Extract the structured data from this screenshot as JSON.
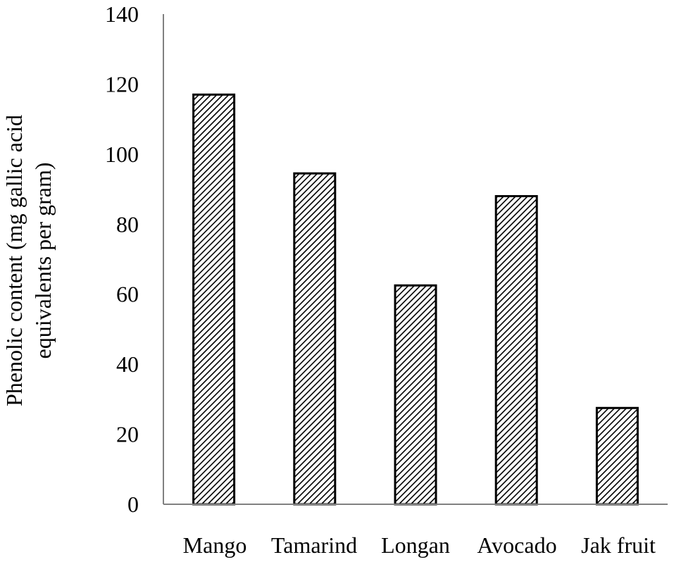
{
  "chart_data": {
    "type": "bar",
    "title": "",
    "xlabel": "",
    "ylabel_lines": [
      "Phenolic content (mg gallic acid",
      "equivalents per gram)"
    ],
    "categories": [
      "Mango",
      "Tamarind",
      "Longan",
      "Avocado",
      "Jak fruit"
    ],
    "values": [
      117,
      94.5,
      62.5,
      88,
      27.5
    ],
    "ylim": [
      0,
      140
    ],
    "yticks": [
      "0",
      "20",
      "40",
      "60",
      "80",
      "100",
      "120",
      "140"
    ],
    "grid": false,
    "legend": "none",
    "bar_fill": "diagonal-hatch",
    "colors": {
      "bar_stroke": "#000000",
      "hatch": "#000000",
      "axis": "#808080",
      "background": "#ffffff"
    }
  }
}
